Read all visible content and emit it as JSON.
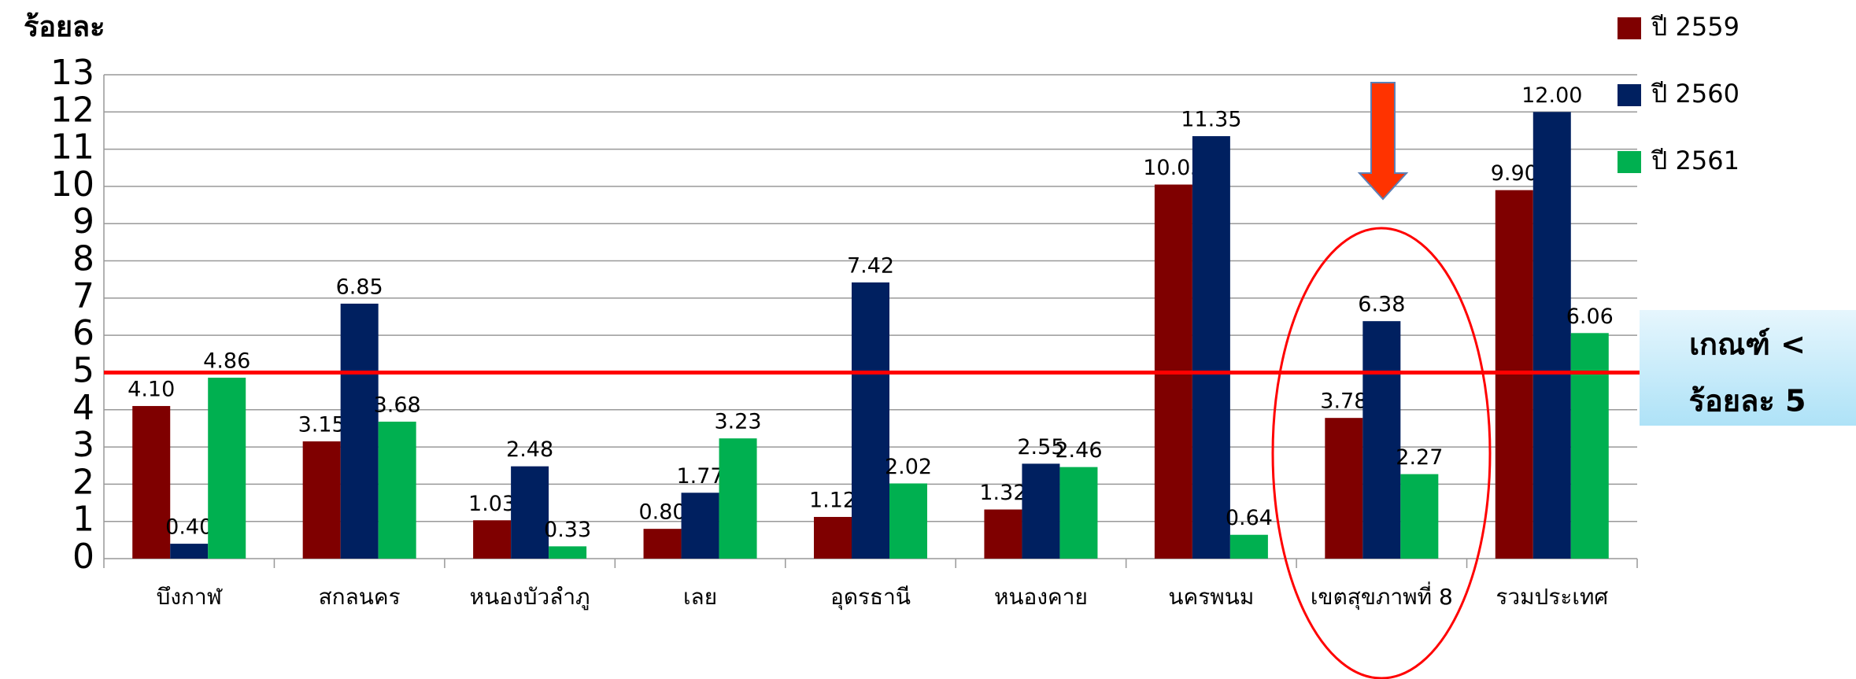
{
  "chart_data": {
    "type": "bar",
    "y_label": "ร้อยละ",
    "categories": [
      "บึงกาฬ",
      "สกลนคร",
      "หนองบัวลำภู",
      "เลย",
      "อุดรธานี",
      "หนองคาย",
      "นครพนม",
      "เขตสุขภาพที่ 8",
      "รวมประเทศ"
    ],
    "series": [
      {
        "name": "ปี 2559",
        "color": "#7f0000",
        "values": [
          4.1,
          3.15,
          1.03,
          0.8,
          1.12,
          1.32,
          10.05,
          3.78,
          9.9
        ],
        "value_labels": [
          "4.10",
          "3.15",
          "1.03",
          "0.80",
          "1.12",
          "1.32",
          "10.05",
          "3.78",
          "9.90"
        ]
      },
      {
        "name": "ปี 2560",
        "color": "#002060",
        "values": [
          0.4,
          6.85,
          2.48,
          1.77,
          7.42,
          2.55,
          11.35,
          6.38,
          12
        ],
        "value_labels": [
          "0.40",
          "6.85",
          "2.48",
          "1.77",
          "7.42",
          "2.55",
          "11.35",
          "6.38",
          "12.00"
        ]
      },
      {
        "name": "ปี 2561",
        "color": "#00b050",
        "values": [
          4.86,
          3.68,
          0.33,
          3.23,
          2.02,
          2.46,
          0.64,
          2.27,
          6.06
        ],
        "value_labels": [
          "4.86",
          "3.68",
          "0.33",
          "3.23",
          "2.02",
          "2.46",
          "0.64",
          "2.27",
          "6.06"
        ]
      }
    ],
    "ylim": [
      0,
      13
    ],
    "yticks": [
      0,
      1,
      2,
      3,
      4,
      5,
      6,
      7,
      8,
      9,
      10,
      11,
      12,
      13
    ],
    "grid": true,
    "threshold": 5,
    "threshold_color": "#ff0000",
    "annotation": [
      "เกณฑ์ <",
      "ร้อยละ 5"
    ]
  }
}
